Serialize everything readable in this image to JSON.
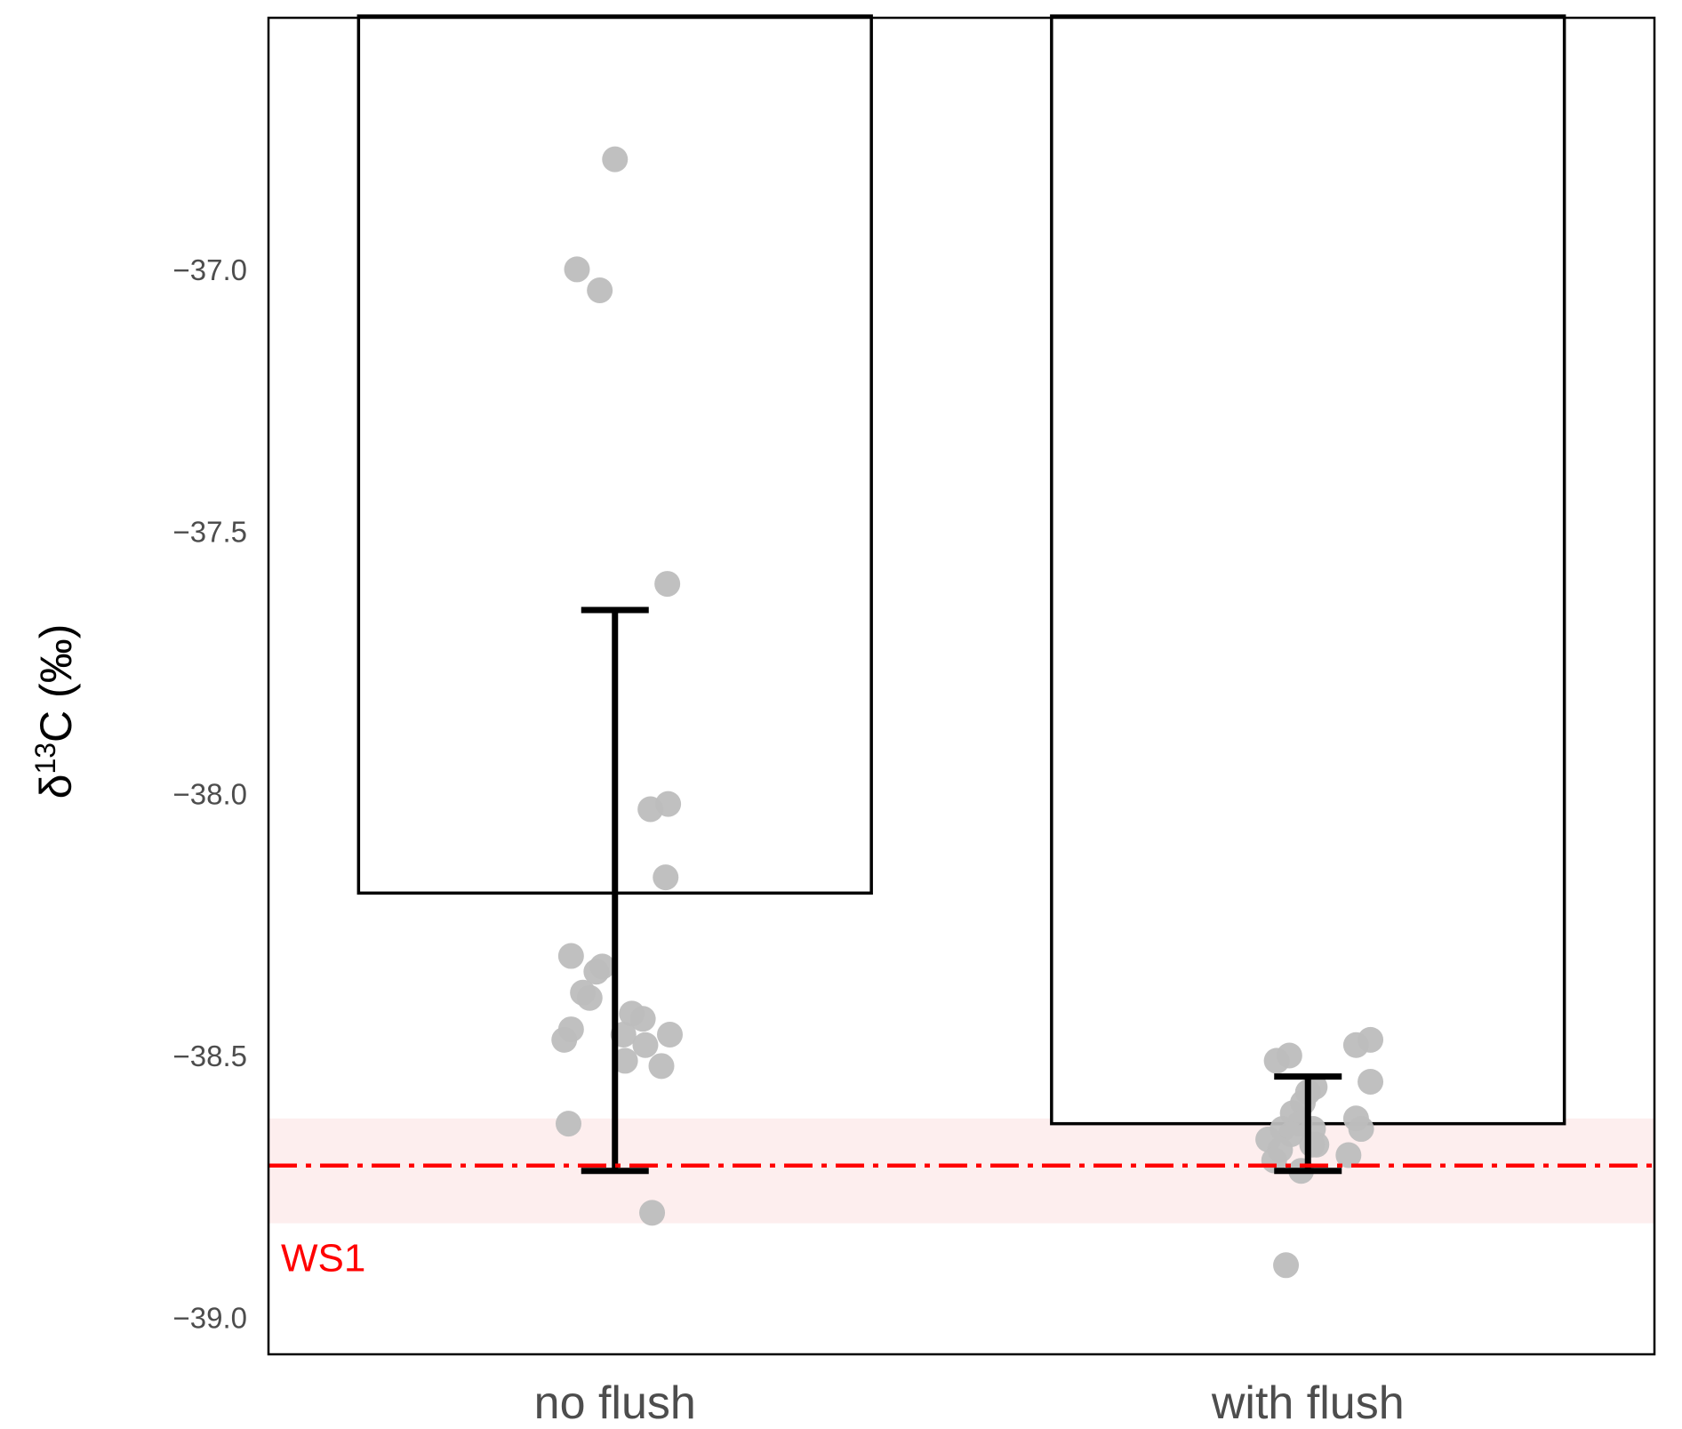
{
  "chart_data": {
    "type": "bar",
    "categories": [
      "no flush",
      "with flush"
    ],
    "values": [
      -38.19,
      -38.63
    ],
    "error_bars": [
      {
        "category": "no flush",
        "low": -38.72,
        "high": -37.65
      },
      {
        "category": "with flush",
        "low": -38.72,
        "high": -38.54
      }
    ],
    "points": [
      {
        "category": "no flush",
        "values": [
          -36.79,
          -37.0,
          -37.04,
          -37.6,
          -38.03,
          -38.02,
          -38.16,
          -38.31,
          -38.34,
          -38.33,
          -38.38,
          -38.39,
          -38.42,
          -38.43,
          -38.45,
          -38.46,
          -38.46,
          -38.47,
          -38.48,
          -38.51,
          -38.52,
          -38.63,
          -38.8
        ]
      },
      {
        "category": "with flush",
        "values": [
          -38.48,
          -38.47,
          -38.5,
          -38.51,
          -38.55,
          -38.56,
          -38.57,
          -38.59,
          -38.61,
          -38.62,
          -38.63,
          -38.64,
          -38.64,
          -38.64,
          -38.65,
          -38.66,
          -38.67,
          -38.67,
          -38.68,
          -38.69,
          -38.7,
          -38.72,
          -38.9
        ]
      }
    ],
    "reference": {
      "label": "WS1",
      "value": -38.71,
      "band": [
        -38.82,
        -38.62
      ],
      "color": "#ff0000",
      "band_color": "#fdeeee"
    },
    "ylabel_parts": {
      "delta": "δ",
      "sup": "13",
      "rest": "C (‰)"
    },
    "xlabel": "",
    "ylim": [
      -39.07,
      -36.52
    ],
    "yticks": [
      -37.0,
      -37.5,
      -38.0,
      -38.5,
      -39.0
    ],
    "ytick_labels": [
      "−37.0",
      "−37.5",
      "−38.0",
      "−38.5",
      "−39.0"
    ],
    "grid": false,
    "colors": {
      "bar_fill": "#ffffff",
      "bar_stroke": "#000000",
      "points": "#bdbdbd",
      "error_bar": "#000000",
      "text": "#4d4d4d"
    }
  }
}
